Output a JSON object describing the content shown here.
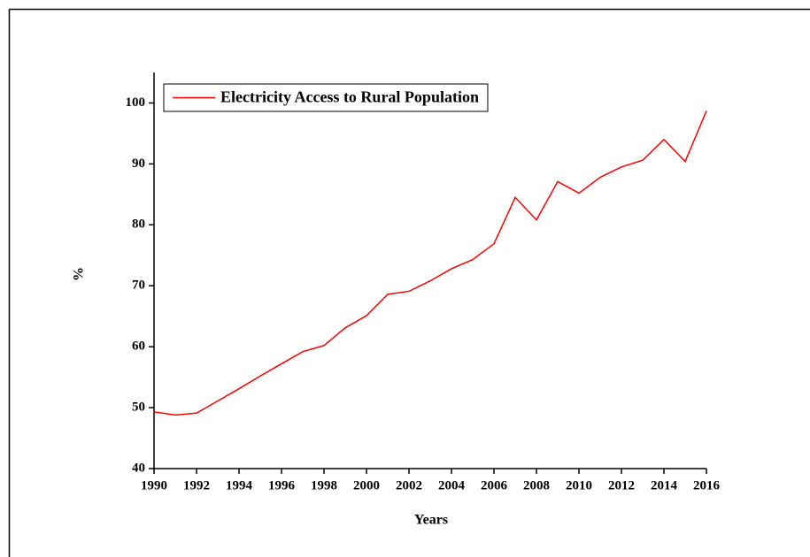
{
  "chart_data": {
    "type": "line",
    "x_label": "Years",
    "y_label": "%",
    "x": [
      1990,
      1991,
      1992,
      1993,
      1994,
      1995,
      1996,
      1997,
      1998,
      1999,
      2000,
      2001,
      2002,
      2003,
      2004,
      2005,
      2006,
      2007,
      2008,
      2009,
      2010,
      2011,
      2012,
      2013,
      2014,
      2015,
      2016
    ],
    "series": [
      {
        "name": "Electricity Access to Rural Population",
        "color": "#ff0000",
        "values": [
          49.3,
          48.8,
          49.1,
          51.1,
          53.1,
          55.2,
          57.2,
          59.2,
          60.2,
          63.1,
          65.1,
          68.6,
          69.1,
          70.8,
          72.8,
          74.3,
          76.9,
          84.5,
          80.8,
          87.1,
          85.2,
          87.8,
          89.5,
          90.6,
          94.0,
          90.4,
          98.7
        ]
      }
    ],
    "xlim": [
      1990,
      2016
    ],
    "xticks": [
      1990,
      1992,
      1994,
      1996,
      1998,
      2000,
      2002,
      2004,
      2006,
      2008,
      2010,
      2012,
      2014,
      2016
    ],
    "ylim": [
      40,
      105
    ],
    "yticks": [
      40,
      50,
      60,
      70,
      80,
      90,
      100
    ],
    "legend_position": "upper-left"
  }
}
